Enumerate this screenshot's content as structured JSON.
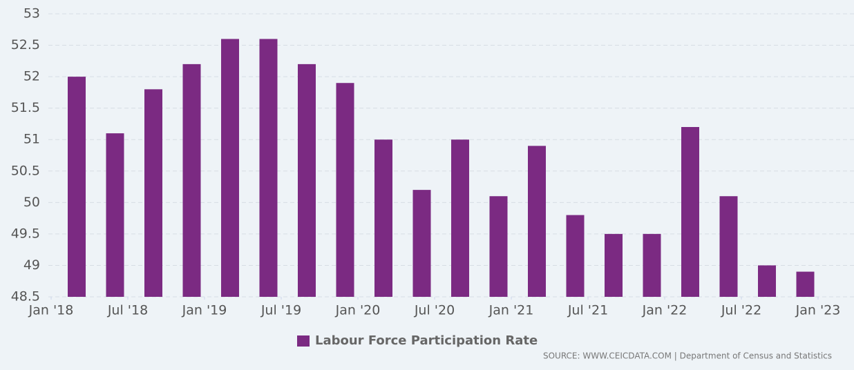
{
  "chart_data": {
    "type": "bar",
    "x": [
      "2018-03",
      "2018-06",
      "2018-09",
      "2018-12",
      "2019-03",
      "2019-06",
      "2019-09",
      "2019-12",
      "2020-03",
      "2020-06",
      "2020-09",
      "2020-12",
      "2021-03",
      "2021-06",
      "2021-09",
      "2021-12",
      "2022-03",
      "2022-06",
      "2022-09",
      "2022-12"
    ],
    "series": [
      {
        "name": "Labour Force Participation Rate",
        "color": "#7b2a82",
        "values": [
          52.0,
          51.1,
          51.8,
          52.2,
          52.6,
          52.6,
          52.2,
          51.9,
          51.0,
          50.2,
          51.0,
          50.1,
          50.9,
          49.8,
          49.5,
          49.5,
          51.2,
          50.1,
          49.0,
          48.9
        ]
      }
    ],
    "xlim": [
      "2018-01",
      "2023-01"
    ],
    "xticks": [
      {
        "value": "2018-01",
        "label": "Jan '18"
      },
      {
        "value": "2018-07",
        "label": "Jul '18"
      },
      {
        "value": "2019-01",
        "label": "Jan '19"
      },
      {
        "value": "2019-07",
        "label": "Jul '19"
      },
      {
        "value": "2020-01",
        "label": "Jan '20"
      },
      {
        "value": "2020-07",
        "label": "Jul '20"
      },
      {
        "value": "2021-01",
        "label": "Jan '21"
      },
      {
        "value": "2021-07",
        "label": "Jul '21"
      },
      {
        "value": "2022-01",
        "label": "Jan '22"
      },
      {
        "value": "2022-07",
        "label": "Jul '22"
      },
      {
        "value": "2023-01",
        "label": "Jan '23"
      }
    ],
    "ylim": [
      48.5,
      53
    ],
    "yticks": [
      48.5,
      49,
      49.5,
      50,
      50.5,
      51,
      51.5,
      52,
      52.5,
      53
    ],
    "grid": true,
    "legend": "bottom",
    "source": "SOURCE: WWW.CEICDATA.COM | Department of Census and Statistics"
  }
}
